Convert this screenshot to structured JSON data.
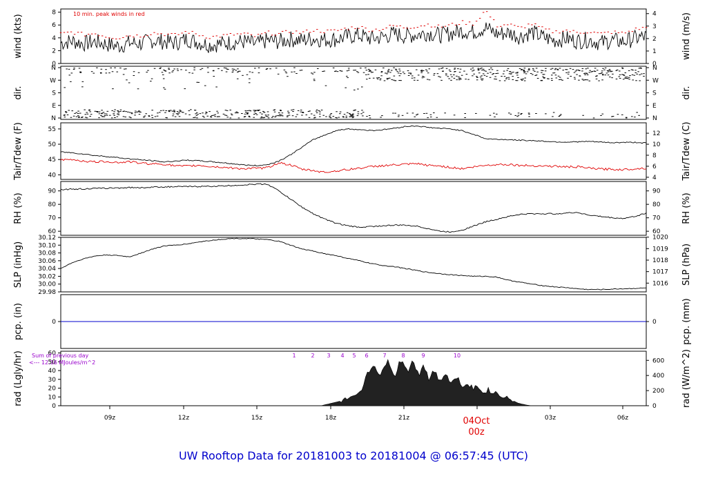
{
  "footer_title": "UW Rooftop Data for 20181003  to  20181004 @ 06:57:45  (UTC)",
  "colors": {
    "peak": "#e00000",
    "dew": "#e00000",
    "precip": "#0000cc",
    "title": "#0000cc",
    "date": "#e00000",
    "annot": "#9900cc"
  },
  "chart_data": [
    {
      "type": "line",
      "name": "wind",
      "ylabel_left": "wind (kts)",
      "ylabel_right": "wind (m/s)",
      "ylim": [
        0,
        8.5
      ],
      "yticks_left": [
        0,
        2,
        4,
        6,
        8
      ],
      "yticks_right": [
        0,
        1,
        2,
        3,
        4
      ],
      "annotation": "10 min. peak winds in red",
      "series": [
        {
          "key": "speed",
          "values": [
            3.2,
            3.5,
            3.1,
            3.4,
            3.0,
            2.7,
            3.2,
            3.1,
            3.6,
            3.4,
            3.2,
            3.8,
            3.3,
            2.9,
            3.1,
            3.3,
            3.4,
            3.0,
            3.6,
            3.4,
            3.8,
            3.6,
            3.9,
            3.7,
            3.8,
            4.2,
            4.4,
            3.9,
            4.1,
            4.6,
            4.3,
            4.5,
            4.8,
            4.4,
            4.7,
            5.1,
            4.9,
            5.6,
            4.6,
            4.8,
            4.2,
            4.9,
            4.1,
            3.6,
            3.9,
            3.5,
            3.7,
            3.2,
            3.6,
            3.4,
            3.9,
            4.2
          ]
        },
        {
          "key": "peak",
          "values": [
            4.6,
            4.9,
            4.5,
            4.7,
            4.2,
            4.0,
            4.4,
            4.3,
            4.8,
            4.6,
            4.4,
            5.0,
            4.5,
            4.1,
            4.3,
            4.5,
            4.6,
            4.2,
            4.8,
            4.6,
            5.0,
            4.8,
            5.2,
            5.0,
            5.1,
            5.5,
            5.7,
            5.2,
            5.4,
            5.9,
            5.6,
            5.8,
            6.1,
            5.7,
            6.0,
            6.4,
            6.2,
            8.3,
            5.9,
            6.1,
            5.5,
            6.2,
            5.4,
            4.9,
            5.2,
            4.8,
            5.0,
            4.6,
            4.9,
            4.7,
            5.3,
            5.6
          ]
        }
      ]
    },
    {
      "type": "scatter",
      "name": "dir",
      "ylabel_left": "dir.",
      "ylabel_right": "dir.",
      "yticks_left": [
        "N",
        "E",
        "S",
        "W",
        "N"
      ],
      "yticks_right": [
        "N",
        "E",
        "S",
        "W",
        "N"
      ],
      "ylim": [
        0,
        360
      ]
    },
    {
      "type": "line",
      "name": "temp",
      "ylabel_left": "Tair/Tdew (F)",
      "ylabel_right": "Tair/Tdew (C)",
      "ylim": [
        38.5,
        57
      ],
      "yticks_left": [
        40,
        45,
        50,
        55
      ],
      "yticks_right": [
        4,
        6,
        8,
        10,
        12
      ],
      "series": [
        {
          "key": "tair",
          "values": [
            47.5,
            47.2,
            46.8,
            46.3,
            46.0,
            45.6,
            45.2,
            44.9,
            44.6,
            44.2,
            44.5,
            44.8,
            44.6,
            44.3,
            44.0,
            43.6,
            43.2,
            43.0,
            43.3,
            44.5,
            46.5,
            49.0,
            51.5,
            53.0,
            54.5,
            55.0,
            54.8,
            54.5,
            54.7,
            55.2,
            55.8,
            56.0,
            55.5,
            55.2,
            55.0,
            54.4,
            53.2,
            51.8,
            51.6,
            51.5,
            51.3,
            51.2,
            51.0,
            50.8,
            50.7,
            50.8,
            50.9,
            50.7,
            50.5,
            50.6,
            50.6,
            50.4
          ]
        },
        {
          "key": "tdew",
          "values": [
            44.8,
            45.0,
            44.5,
            44.2,
            44.4,
            44.0,
            44.3,
            43.8,
            43.6,
            43.5,
            42.9,
            42.8,
            43.1,
            42.7,
            42.5,
            42.2,
            42.0,
            42.1,
            42.3,
            44.0,
            43.2,
            41.8,
            41.4,
            40.8,
            41.3,
            41.7,
            42.2,
            42.6,
            43.0,
            43.2,
            43.4,
            43.6,
            43.1,
            42.9,
            42.4,
            42.0,
            42.6,
            43.1,
            43.4,
            43.4,
            43.1,
            43.0,
            42.9,
            42.8,
            42.6,
            42.6,
            42.2,
            41.9,
            41.8,
            41.7,
            42.0,
            42.2
          ]
        }
      ]
    },
    {
      "type": "line",
      "name": "rh",
      "ylabel_left": "RH (%)",
      "ylabel_right": "RH (%)",
      "ylim": [
        57,
        97
      ],
      "yticks_left": [
        60,
        70,
        80,
        90
      ],
      "yticks_right": [
        60,
        70,
        80,
        90
      ],
      "series": [
        {
          "key": "rh",
          "values": [
            91,
            91.3,
            91.5,
            91.8,
            92,
            92.2,
            92.5,
            92.4,
            92.8,
            93,
            93.1,
            93.2,
            93.3,
            93.4,
            93.6,
            94,
            94.5,
            95,
            95,
            90,
            84,
            78,
            73,
            69,
            66,
            64,
            63,
            63.5,
            64,
            64.5,
            64.5,
            63.8,
            62,
            60,
            59.5,
            61,
            64,
            67,
            69,
            71,
            72.5,
            73,
            73,
            73,
            73.5,
            74,
            72,
            71,
            70,
            69.5,
            71,
            73.5
          ]
        }
      ]
    },
    {
      "type": "line",
      "name": "slp",
      "ylabel_left": "SLP (inHg)",
      "ylabel_right": "SLP (hPa)",
      "ylim": [
        29.98,
        30.12
      ],
      "yticks_left": [
        29.98,
        30.0,
        30.02,
        30.04,
        30.06,
        30.08,
        30.1,
        30.12
      ],
      "yticks_right": [
        1016,
        1017,
        1018,
        1019,
        1020
      ],
      "series": [
        {
          "key": "slp",
          "values": [
            30.04,
            30.055,
            30.065,
            30.072,
            30.075,
            30.073,
            30.07,
            30.08,
            30.09,
            30.098,
            30.1,
            30.103,
            30.108,
            30.112,
            30.115,
            30.117,
            30.117,
            30.116,
            30.114,
            30.11,
            30.1,
            30.09,
            30.085,
            30.078,
            30.073,
            30.066,
            30.06,
            30.053,
            30.048,
            30.045,
            30.04,
            30.035,
            30.03,
            30.027,
            30.024,
            30.022,
            30.02,
            30.02,
            30.018,
            30.01,
            30.005,
            30.0,
            29.996,
            29.993,
            29.991,
            29.988,
            29.986,
            29.986,
            29.987,
            29.988,
            29.989,
            29.99
          ]
        }
      ]
    },
    {
      "type": "line",
      "name": "pcp",
      "ylabel_left": "pcp. (in)",
      "ylabel_right": "pcp. (mm)",
      "yticks_left": [
        0
      ],
      "yticks_right": [
        0
      ],
      "series": [
        {
          "key": "pcp",
          "values": [
            0,
            0
          ]
        }
      ]
    },
    {
      "type": "area",
      "name": "rad",
      "ylabel_left": "rad (Lgly/hr)",
      "ylabel_right": "rad (W/m^2)",
      "ylim": [
        0,
        62
      ],
      "yticks_left": [
        0,
        10,
        20,
        30,
        40,
        50,
        60
      ],
      "yticks_right": [
        0,
        200,
        400,
        600
      ],
      "annotation_line1": "Sum of previous day",
      "annotation_line2": "<--- 12.16 MJoules/m^2",
      "hour_markers": [
        "1",
        "2",
        "3",
        "4",
        "5",
        "6",
        "7",
        "8",
        "9",
        "10"
      ],
      "series": [
        {
          "key": "rad",
          "values": [
            0,
            0,
            0,
            0,
            0,
            0,
            0,
            0,
            0,
            0,
            0,
            0,
            0,
            0,
            0,
            0,
            0,
            0,
            0,
            0,
            0,
            0,
            0,
            0,
            0,
            0,
            0,
            0,
            0,
            0,
            0,
            0,
            0,
            0,
            0,
            0,
            0,
            0,
            0,
            0,
            0,
            0,
            0,
            0,
            0,
            0,
            0,
            0,
            0,
            0,
            0,
            0,
            0,
            0,
            0,
            0,
            0,
            0,
            0,
            0,
            0,
            0,
            0,
            0,
            0,
            0,
            0,
            0,
            0,
            0,
            0,
            0,
            0,
            0,
            0,
            0,
            0,
            0,
            0,
            0,
            0,
            0,
            0,
            0,
            0,
            0,
            0,
            0,
            0,
            0,
            0,
            0,
            0,
            0,
            0,
            0,
            0,
            0,
            0,
            0,
            0,
            0,
            0,
            0,
            0,
            0,
            0,
            0,
            0,
            0,
            0,
            0,
            0,
            0,
            0,
            0,
            0,
            0,
            0,
            0,
            0,
            0,
            0,
            0,
            0,
            0,
            0,
            0,
            0,
            0,
            0,
            0,
            0,
            0,
            0,
            0,
            0,
            0,
            0,
            0,
            0,
            0.5,
            1,
            1.5,
            2,
            2.5,
            3,
            3.5,
            4,
            4.5,
            5,
            5.5,
            6,
            6.5,
            7,
            7.5,
            8,
            8.5,
            9,
            10,
            12,
            14,
            18,
            22,
            30,
            36,
            40,
            42,
            44,
            46,
            42,
            38,
            34,
            38,
            42,
            46,
            52,
            48,
            40,
            36,
            34,
            42,
            48,
            52,
            50,
            46,
            42,
            40,
            46,
            52,
            48,
            44,
            38,
            36,
            44,
            48,
            42,
            36,
            30,
            34,
            38,
            40,
            36,
            32,
            30,
            32,
            34,
            36,
            34,
            30,
            26,
            28,
            30,
            32,
            30,
            26,
            24,
            22,
            24,
            26,
            24,
            22,
            20,
            21,
            22,
            20,
            18,
            17,
            16,
            17,
            18,
            16,
            15,
            14,
            15,
            14,
            13,
            12,
            11,
            10,
            9,
            8,
            7,
            6,
            5,
            4,
            3,
            2.5,
            2,
            1.5,
            1,
            0.6,
            0.3,
            0.1,
            0,
            0,
            0,
            0,
            0,
            0,
            0,
            0,
            0,
            0,
            0,
            0,
            0,
            0,
            0,
            0,
            0,
            0,
            0,
            0,
            0,
            0,
            0,
            0,
            0,
            0,
            0,
            0,
            0,
            0,
            0,
            0,
            0,
            0,
            0,
            0,
            0,
            0,
            0,
            0,
            0,
            0,
            0,
            0,
            0,
            0,
            0,
            0,
            0,
            0,
            0,
            0,
            0,
            0,
            0,
            0,
            0,
            0,
            0,
            0,
            0,
            0
          ]
        }
      ]
    }
  ],
  "x_axis": {
    "ticks": [
      "09z",
      "12z",
      "15z",
      "18z",
      "21z",
      "03z",
      "06z"
    ],
    "date_label": "04Oct",
    "date_sub": "00z"
  }
}
